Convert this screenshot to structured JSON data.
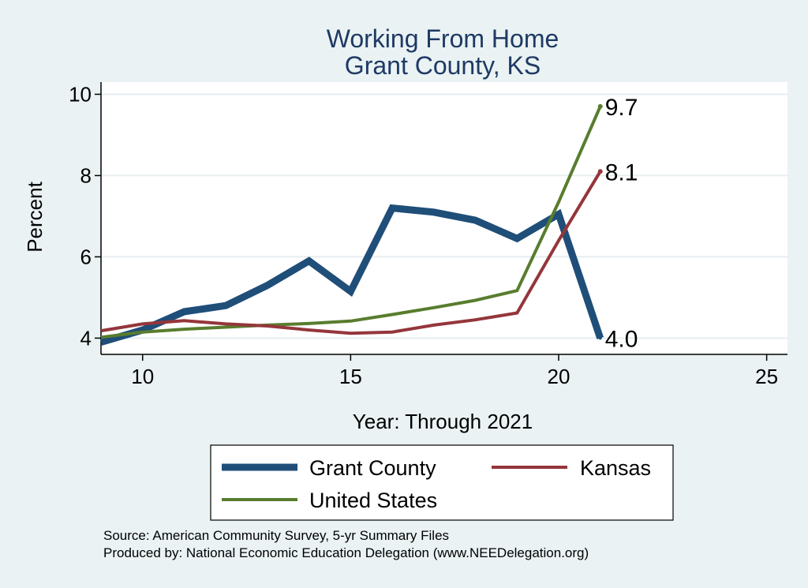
{
  "chart_data": {
    "type": "line",
    "title": [
      "Working From Home",
      "Grant County, KS"
    ],
    "xlabel": "Year: Through 2021",
    "ylabel": "Percent",
    "xlim": [
      9,
      25.5
    ],
    "ylim": [
      3.6,
      10.3
    ],
    "xticks": [
      10,
      15,
      20,
      25
    ],
    "yticks": [
      4,
      6,
      8,
      10
    ],
    "grid": "horizontal",
    "x": [
      9,
      10,
      11,
      12,
      13,
      14,
      15,
      16,
      17,
      18,
      19,
      20,
      21
    ],
    "series": [
      {
        "name": "Grant County",
        "color": "#1f4e79",
        "width": 9,
        "values": [
          3.9,
          4.2,
          4.65,
          4.8,
          5.3,
          5.9,
          5.15,
          7.2,
          7.1,
          6.9,
          6.45,
          7.05,
          4.0
        ],
        "end_label": "4.0"
      },
      {
        "name": "Kansas",
        "color": "#94363b",
        "width": 4,
        "values": [
          4.18,
          4.35,
          4.43,
          4.35,
          4.3,
          4.2,
          4.12,
          4.15,
          4.32,
          4.45,
          4.62,
          6.4,
          8.1
        ],
        "end_label": "8.1"
      },
      {
        "name": "United States",
        "color": "#587d2e",
        "width": 4,
        "values": [
          4.02,
          4.15,
          4.22,
          4.27,
          4.32,
          4.36,
          4.42,
          4.58,
          4.75,
          4.93,
          5.17,
          7.35,
          9.7
        ],
        "end_label": "9.7"
      }
    ],
    "legend": {
      "placement": "bottom",
      "entries": [
        "Grant County",
        "Kansas",
        "United States"
      ]
    }
  },
  "notes": {
    "source": "Source: American Community Survey, 5-yr Summary Files",
    "produced": "Produced by: National Economic Education Delegation (www.NEEDelegation.org)"
  }
}
